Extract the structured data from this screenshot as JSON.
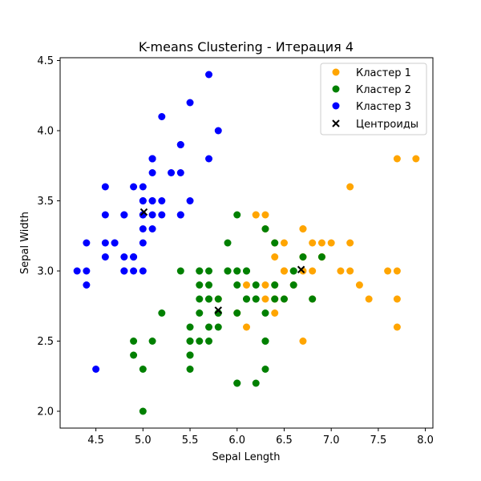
{
  "chart_data": {
    "type": "scatter",
    "title": "K-means Clustering - Итерация 4",
    "xlabel": "Sepal Length",
    "ylabel": "Sepal Width",
    "xlim": [
      4.12,
      8.08
    ],
    "ylim": [
      1.88,
      4.52
    ],
    "xticks": [
      4.5,
      5.0,
      5.5,
      6.0,
      6.5,
      7.0,
      7.5,
      8.0
    ],
    "xtick_labels": [
      "4.5",
      "5.0",
      "5.5",
      "6.0",
      "6.5",
      "7.0",
      "7.5",
      "8.0"
    ],
    "yticks": [
      2.0,
      2.5,
      3.0,
      3.5,
      4.0,
      4.5
    ],
    "ytick_labels": [
      "2.0",
      "2.5",
      "3.0",
      "3.5",
      "4.0",
      "4.5"
    ],
    "grid": false,
    "legend_position": "top-right",
    "series": [
      {
        "name": "Кластер 1",
        "color": "#ffa500",
        "marker": "circle",
        "points": [
          [
            7.0,
            3.2
          ],
          [
            6.9,
            3.1
          ],
          [
            6.5,
            2.8
          ],
          [
            6.3,
            3.3
          ],
          [
            6.1,
            2.9
          ],
          [
            6.7,
            3.1
          ],
          [
            6.2,
            3.4
          ],
          [
            6.0,
            2.7
          ],
          [
            6.3,
            2.9
          ],
          [
            6.6,
            2.9
          ],
          [
            7.1,
            3.0
          ],
          [
            6.5,
            3.0
          ],
          [
            7.6,
            3.0
          ],
          [
            7.3,
            2.9
          ],
          [
            6.7,
            2.5
          ],
          [
            7.2,
            3.6
          ],
          [
            6.5,
            3.2
          ],
          [
            6.4,
            2.7
          ],
          [
            6.8,
            3.0
          ],
          [
            6.4,
            3.2
          ],
          [
            6.5,
            3.0
          ],
          [
            7.7,
            3.8
          ],
          [
            7.7,
            2.6
          ],
          [
            6.9,
            3.2
          ],
          [
            7.7,
            2.8
          ],
          [
            6.7,
            3.3
          ],
          [
            7.2,
            3.2
          ],
          [
            6.4,
            2.8
          ],
          [
            7.2,
            3.0
          ],
          [
            7.4,
            2.8
          ],
          [
            7.9,
            3.8
          ],
          [
            6.4,
            2.8
          ],
          [
            6.3,
            2.8
          ],
          [
            6.1,
            2.6
          ],
          [
            7.7,
            3.0
          ],
          [
            6.4,
            3.1
          ],
          [
            6.9,
            3.1
          ],
          [
            6.7,
            3.1
          ],
          [
            6.9,
            3.1
          ],
          [
            6.8,
            3.2
          ],
          [
            6.7,
            3.3
          ],
          [
            6.7,
            3.0
          ],
          [
            6.5,
            3.0
          ],
          [
            6.2,
            3.4
          ],
          [
            6.3,
            3.4
          ],
          [
            6.8,
            2.8
          ],
          [
            5.8,
            2.8
          ],
          [
            6.4,
            2.9
          ]
        ]
      },
      {
        "name": "Кластер 2",
        "color": "#008000",
        "marker": "circle",
        "points": [
          [
            5.5,
            2.3
          ],
          [
            5.7,
            2.8
          ],
          [
            4.9,
            2.4
          ],
          [
            6.6,
            2.9
          ],
          [
            5.2,
            2.7
          ],
          [
            5.0,
            2.0
          ],
          [
            5.9,
            3.0
          ],
          [
            6.0,
            2.2
          ],
          [
            5.6,
            2.9
          ],
          [
            5.6,
            3.0
          ],
          [
            5.8,
            2.7
          ],
          [
            6.2,
            2.2
          ],
          [
            5.6,
            2.5
          ],
          [
            5.9,
            3.2
          ],
          [
            6.1,
            2.8
          ],
          [
            6.4,
            2.9
          ],
          [
            6.6,
            3.0
          ],
          [
            6.8,
            2.8
          ],
          [
            6.0,
            2.9
          ],
          [
            5.7,
            2.6
          ],
          [
            5.5,
            2.4
          ],
          [
            5.5,
            2.4
          ],
          [
            5.8,
            2.7
          ],
          [
            6.0,
            2.7
          ],
          [
            5.4,
            3.0
          ],
          [
            6.0,
            3.4
          ],
          [
            6.3,
            2.3
          ],
          [
            5.6,
            3.0
          ],
          [
            5.5,
            2.5
          ],
          [
            5.5,
            2.6
          ],
          [
            6.1,
            3.0
          ],
          [
            5.8,
            2.6
          ],
          [
            5.0,
            2.3
          ],
          [
            5.6,
            2.7
          ],
          [
            5.7,
            3.0
          ],
          [
            5.7,
            2.9
          ],
          [
            6.2,
            2.9
          ],
          [
            5.1,
            2.5
          ],
          [
            5.7,
            2.8
          ],
          [
            6.3,
            2.5
          ],
          [
            4.9,
            2.5
          ],
          [
            5.7,
            2.5
          ],
          [
            5.8,
            2.8
          ],
          [
            6.2,
            2.8
          ],
          [
            6.1,
            3.0
          ],
          [
            6.3,
            2.7
          ],
          [
            6.0,
            3.0
          ],
          [
            5.8,
            2.7
          ],
          [
            6.4,
            3.2
          ],
          [
            6.3,
            3.3
          ],
          [
            6.5,
            2.8
          ],
          [
            6.2,
            2.8
          ],
          [
            6.7,
            3.1
          ],
          [
            6.9,
            3.1
          ],
          [
            6.3,
            2.5
          ],
          [
            5.6,
            2.8
          ],
          [
            6.0,
            2.2
          ],
          [
            6.0,
            3.0
          ],
          [
            6.1,
            2.8
          ],
          [
            6.4,
            2.8
          ],
          [
            6.6,
            3.0
          ],
          [
            5.9,
            3.0
          ],
          [
            5.5,
            2.5
          ]
        ]
      },
      {
        "name": "Кластер 3",
        "color": "#0000ff",
        "marker": "circle",
        "points": [
          [
            5.1,
            3.5
          ],
          [
            4.9,
            3.0
          ],
          [
            4.7,
            3.2
          ],
          [
            4.6,
            3.1
          ],
          [
            5.0,
            3.6
          ],
          [
            5.4,
            3.9
          ],
          [
            4.6,
            3.4
          ],
          [
            5.0,
            3.4
          ],
          [
            4.4,
            2.9
          ],
          [
            4.9,
            3.1
          ],
          [
            5.4,
            3.7
          ],
          [
            4.8,
            3.4
          ],
          [
            4.8,
            3.0
          ],
          [
            4.3,
            3.0
          ],
          [
            5.8,
            4.0
          ],
          [
            5.7,
            4.4
          ],
          [
            5.4,
            3.9
          ],
          [
            5.1,
            3.5
          ],
          [
            5.7,
            3.8
          ],
          [
            5.1,
            3.8
          ],
          [
            5.4,
            3.4
          ],
          [
            5.1,
            3.7
          ],
          [
            4.6,
            3.6
          ],
          [
            5.1,
            3.3
          ],
          [
            4.8,
            3.4
          ],
          [
            5.0,
            3.0
          ],
          [
            5.0,
            3.4
          ],
          [
            5.2,
            3.5
          ],
          [
            5.2,
            3.4
          ],
          [
            4.7,
            3.2
          ],
          [
            4.8,
            3.1
          ],
          [
            5.4,
            3.4
          ],
          [
            5.2,
            4.1
          ],
          [
            5.5,
            4.2
          ],
          [
            4.9,
            3.1
          ],
          [
            5.0,
            3.2
          ],
          [
            5.5,
            3.5
          ],
          [
            4.9,
            3.6
          ],
          [
            4.4,
            3.0
          ],
          [
            5.1,
            3.4
          ],
          [
            5.0,
            3.5
          ],
          [
            4.5,
            2.3
          ],
          [
            4.4,
            3.2
          ],
          [
            5.0,
            3.5
          ],
          [
            5.1,
            3.8
          ],
          [
            4.8,
            3.0
          ],
          [
            5.1,
            3.8
          ],
          [
            4.6,
            3.2
          ],
          [
            5.3,
            3.7
          ],
          [
            5.0,
            3.3
          ]
        ]
      }
    ],
    "centroids": {
      "name": "Центроиды",
      "color": "#000000",
      "marker": "x",
      "points": [
        [
          6.68,
          3.01
        ],
        [
          5.8,
          2.72
        ],
        [
          5.01,
          3.42
        ]
      ]
    }
  }
}
